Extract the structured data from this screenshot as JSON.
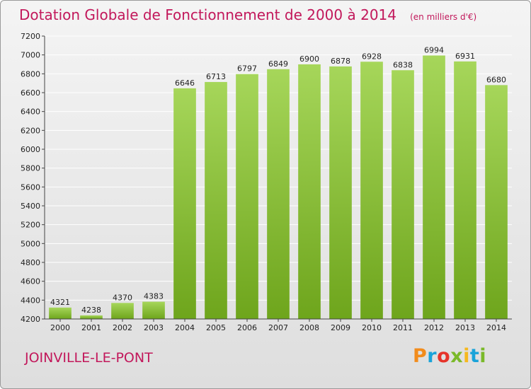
{
  "header": {
    "title": "Dotation Globale de Fonctionnement de 2000 à 2014",
    "unit": "(en milliers d'€)"
  },
  "footer": {
    "commune": "JOINVILLE-LE-PONT",
    "logo": "Proxiti",
    "logo_colors": [
      "#f28c1c",
      "#1aa3d9",
      "#e6332a",
      "#7ab929",
      "#f6b91e",
      "#1aa3d9",
      "#7ab929"
    ]
  },
  "colors": {
    "bar_light": "#a6d65a",
    "bar_dark": "#6ea51c",
    "title": "#c2185b",
    "grid": "#ffffff"
  },
  "chart_data": {
    "type": "bar",
    "categories": [
      "2000",
      "2001",
      "2002",
      "2003",
      "2004",
      "2005",
      "2006",
      "2007",
      "2008",
      "2009",
      "2010",
      "2011",
      "2012",
      "2013",
      "2014"
    ],
    "values": [
      4321,
      4238,
      4370,
      4383,
      6646,
      6713,
      6797,
      6849,
      6900,
      6878,
      6928,
      6838,
      6994,
      6931,
      6680
    ],
    "data_labels": [
      "4321",
      "4238",
      "4370",
      "4383",
      "6646",
      "6713",
      "6797",
      "6849",
      "6900",
      "6878",
      "6928",
      "6838",
      "6994",
      "6931",
      "6680"
    ],
    "yticks": [
      "4200",
      "4400",
      "4600",
      "4800",
      "5000",
      "5200",
      "5400",
      "5600",
      "5800",
      "6000",
      "6200",
      "6400",
      "6600",
      "6800",
      "7000",
      "7200"
    ],
    "ylim": [
      4200,
      7200
    ],
    "grid": true,
    "legend": "none"
  }
}
